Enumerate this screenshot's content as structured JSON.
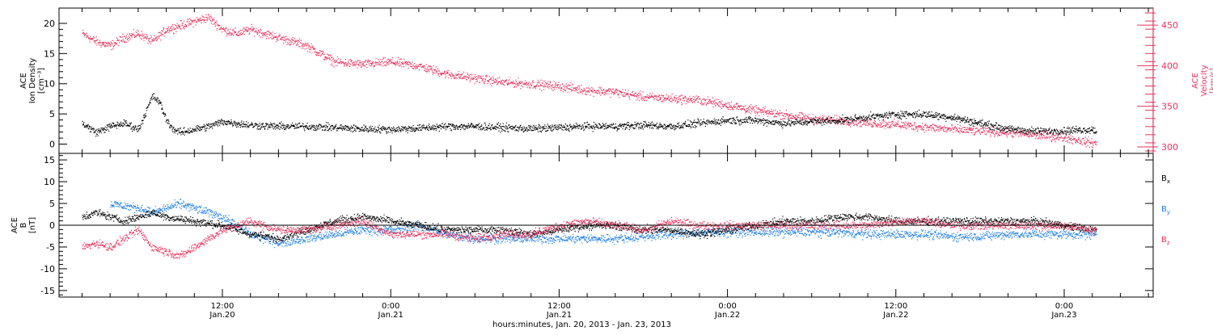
{
  "colors": {
    "axis": "#000000",
    "velocity": "#e8335f",
    "bx": "#000000",
    "by": "#1f7fe0",
    "bz": "#e8335f"
  },
  "chart_data": [
    {
      "type": "scatter",
      "panel": "top",
      "ylabel_left": [
        "ACE",
        "Ion Density",
        "[cm⁻³]"
      ],
      "ylabel_right": [
        "ACE",
        "Velocity",
        "[km/s]"
      ],
      "ylim_left": [
        -1,
        22
      ],
      "ylim_right": [
        292,
        471
      ],
      "yticks_left": [
        0,
        5,
        10,
        15,
        20
      ],
      "yticks_right": [
        300,
        350,
        400,
        450
      ],
      "series": [
        {
          "key": "density",
          "axis": "left",
          "color": "#000000",
          "t": [
            0,
            1,
            2,
            3,
            4,
            5,
            5.5,
            6,
            6.5,
            7,
            8,
            9,
            10,
            11,
            12,
            14,
            16,
            18,
            20,
            22,
            24,
            26,
            28,
            30,
            32,
            34,
            36,
            38,
            40,
            42,
            44,
            46,
            48,
            50,
            52,
            54,
            56,
            58,
            60,
            62,
            64,
            66,
            68,
            70,
            72,
            72.3
          ],
          "values": [
            3.5,
            2.0,
            3.0,
            3.5,
            2.5,
            8.0,
            7.0,
            4.0,
            2.5,
            2.0,
            2.5,
            3.0,
            3.8,
            3.5,
            3.2,
            3.0,
            3.0,
            2.8,
            2.6,
            2.5,
            2.7,
            3.0,
            3.0,
            2.8,
            2.6,
            2.8,
            3.0,
            3.0,
            3.2,
            3.0,
            3.5,
            4.0,
            4.0,
            3.5,
            3.8,
            4.0,
            4.5,
            5.0,
            5.0,
            4.5,
            3.5,
            2.5,
            2.2,
            2.3,
            2.5,
            2.0
          ],
          "jitter": 0.9
        },
        {
          "key": "velocity",
          "axis": "right",
          "color": "#e8335f",
          "t": [
            0,
            1,
            2,
            3,
            4,
            5,
            6,
            7,
            8,
            9,
            10,
            11,
            12,
            14,
            16,
            18,
            20,
            22,
            24,
            26,
            28,
            30,
            32,
            34,
            36,
            38,
            40,
            42,
            44,
            46,
            48,
            50,
            52,
            54,
            56,
            58,
            60,
            62,
            64,
            66,
            68,
            70,
            72,
            72.3
          ],
          "values": [
            440,
            430,
            425,
            435,
            440,
            430,
            445,
            450,
            455,
            460,
            445,
            440,
            445,
            435,
            425,
            405,
            402,
            405,
            400,
            390,
            385,
            380,
            378,
            375,
            370,
            368,
            362,
            360,
            358,
            352,
            345,
            340,
            335,
            333,
            330,
            328,
            325,
            322,
            320,
            318,
            315,
            312,
            305,
            305
          ],
          "jitter": 8
        }
      ]
    },
    {
      "type": "scatter",
      "panel": "bottom",
      "ylabel_left": [
        "ACE",
        "B",
        "[nT]"
      ],
      "ylim": [
        -16.5,
        16.5
      ],
      "yticks": [
        -15,
        -10,
        -5,
        0,
        5,
        10,
        15
      ],
      "zero_line": true,
      "xlabel": "hours:minutes, Jan. 20, 2013 - Jan. 23, 2013",
      "x_major_ticks": [
        {
          "t": 12,
          "time": "12:00",
          "date": "Jan.20"
        },
        {
          "t": 24,
          "time": "0:00",
          "date": "Jan.21"
        },
        {
          "t": 36,
          "time": "12:00",
          "date": "Jan.21"
        },
        {
          "t": 48,
          "time": "0:00",
          "date": "Jan.22"
        },
        {
          "t": 60,
          "time": "12:00",
          "date": "Jan.22"
        },
        {
          "t": 72,
          "time": "0:00",
          "date": "Jan.23"
        }
      ],
      "x_range_hours": [
        2.2,
        78.8
      ],
      "series": [
        {
          "key": "bx",
          "name": "B",
          "sub": "x",
          "color": "#000000",
          "t": [
            0,
            1,
            2,
            3,
            4,
            5,
            6,
            8,
            10,
            12,
            14,
            16,
            18,
            20,
            22,
            24,
            26,
            28,
            30,
            32,
            34,
            36,
            38,
            40,
            42,
            44,
            46,
            48,
            50,
            52,
            54,
            56,
            58,
            60,
            62,
            64,
            66,
            68,
            70,
            72,
            72.3
          ],
          "values": [
            2,
            3,
            2,
            1,
            2,
            3,
            2,
            1,
            0,
            -2,
            -3,
            -1,
            1,
            2,
            1,
            0,
            -1,
            -1,
            -1,
            -2,
            -1,
            0,
            0,
            -1,
            -1,
            -2,
            -1,
            0,
            1,
            1,
            2,
            2,
            1,
            1,
            1,
            1,
            1,
            1,
            0,
            -1,
            -1
          ],
          "jitter": 1.3
        },
        {
          "key": "by",
          "name": "B",
          "sub": "y",
          "color": "#1f7fe0",
          "t": [
            2,
            3,
            4,
            5,
            6,
            7,
            8,
            9,
            10,
            11,
            12,
            13,
            14,
            16,
            18,
            20,
            22,
            24,
            26,
            28,
            30,
            32,
            34,
            36,
            38,
            40,
            42,
            44,
            46,
            48,
            50,
            52,
            54,
            56,
            58,
            60,
            62,
            64,
            66,
            68,
            70,
            72,
            72.3
          ],
          "values": [
            5,
            4.5,
            4,
            3,
            4,
            5,
            4,
            3,
            2,
            0,
            -2,
            -3,
            -4,
            -3,
            -2,
            -1,
            -1,
            0,
            -2,
            -3,
            -3,
            -3,
            -3,
            -3,
            -3,
            -2.5,
            -2,
            -1.5,
            -1.5,
            -1.5,
            -1.5,
            -1.5,
            -1.5,
            -2,
            -2,
            -2,
            -2.5,
            -2.5,
            -2,
            -2,
            -2,
            -2,
            -2
          ],
          "jitter": 1.5
        },
        {
          "key": "bz",
          "name": "B",
          "sub": "z",
          "color": "#e8335f",
          "t": [
            0,
            1,
            2,
            3,
            4,
            5,
            6,
            7,
            8,
            9,
            10,
            11,
            12,
            13,
            14,
            16,
            18,
            20,
            22,
            24,
            26,
            28,
            30,
            32,
            34,
            36,
            38,
            40,
            42,
            44,
            46,
            48,
            50,
            52,
            54,
            56,
            58,
            60,
            62,
            64,
            66,
            68,
            70,
            72,
            72.3
          ],
          "values": [
            -5,
            -4,
            -5,
            -3,
            -1,
            -5,
            -6,
            -7,
            -5,
            -3,
            -1,
            0,
            1,
            0,
            -1,
            -1,
            0,
            1,
            -2,
            -2,
            -2,
            -3,
            -2,
            -2,
            0,
            1,
            0,
            -1,
            1,
            0,
            0,
            0,
            0,
            0,
            0,
            0,
            1,
            1,
            0,
            0,
            0,
            0,
            0,
            -1,
            -1
          ],
          "jitter": 1.4
        }
      ]
    }
  ]
}
